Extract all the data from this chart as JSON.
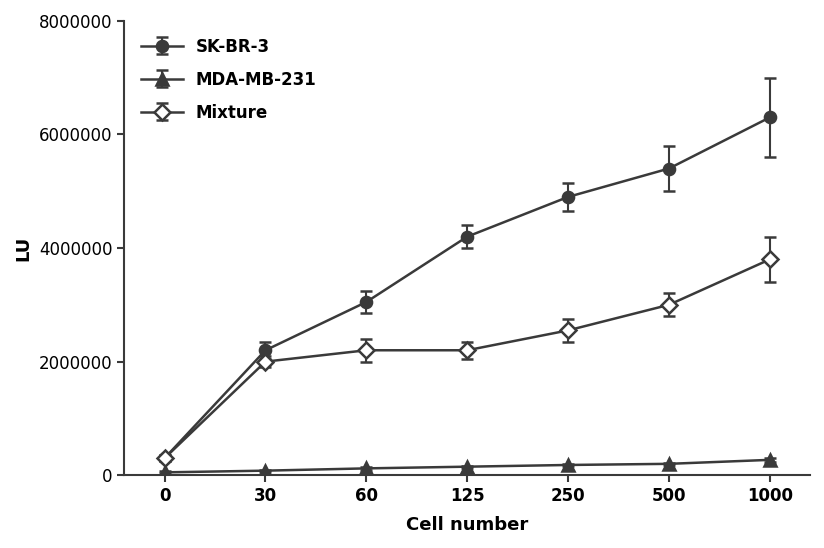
{
  "x_labels": [
    "0",
    "30",
    "60",
    "125",
    "250",
    "500",
    "1000"
  ],
  "x_positions": [
    0,
    1,
    2,
    3,
    4,
    5,
    6
  ],
  "series": {
    "SK-BR-3": {
      "y": [
        300000,
        2200000,
        3050000,
        4200000,
        4900000,
        5400000,
        6300000
      ],
      "yerr": [
        50000,
        150000,
        200000,
        200000,
        250000,
        400000,
        700000
      ],
      "marker": "o",
      "mfc": "#3a3a3a",
      "mec": "#3a3a3a",
      "color": "#3a3a3a",
      "label": "SK-BR-3"
    },
    "MDA-MB-231": {
      "y": [
        50000,
        80000,
        120000,
        150000,
        180000,
        200000,
        270000
      ],
      "yerr": [
        20000,
        20000,
        20000,
        20000,
        20000,
        20000,
        30000
      ],
      "marker": "^",
      "mfc": "#3a3a3a",
      "mec": "#3a3a3a",
      "color": "#3a3a3a",
      "label": "MDA-MB-231"
    },
    "Mixture": {
      "y": [
        300000,
        2000000,
        2200000,
        2200000,
        2550000,
        3000000,
        3800000
      ],
      "yerr": [
        50000,
        100000,
        200000,
        150000,
        200000,
        200000,
        400000
      ],
      "marker": "D",
      "mfc": "#ffffff",
      "mec": "#3a3a3a",
      "color": "#3a3a3a",
      "label": "Mixture"
    }
  },
  "ylim": [
    0,
    8000000
  ],
  "yticks": [
    0,
    2000000,
    4000000,
    6000000,
    8000000
  ],
  "ylabel": "LU",
  "xlabel": "Cell number",
  "background_color": "#ffffff",
  "legend_order": [
    "SK-BR-3",
    "MDA-MB-231",
    "Mixture"
  ]
}
